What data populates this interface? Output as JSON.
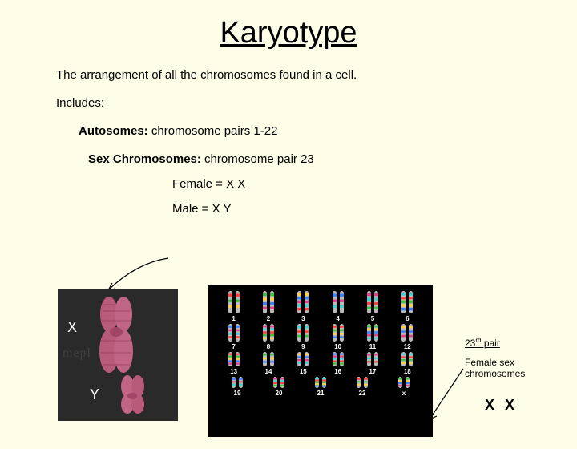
{
  "title": "Karyotype",
  "definition": "The arrangement of all the chromosomes found in a  cell.",
  "includes": "Includes:",
  "autosomes_label": "Autosomes:",
  "autosomes_text": "  chromosome pairs 1-22",
  "sexchrom_label": "Sex Chromosomes:",
  "sexchrom_text": "  chromosome pair 23",
  "female_label": "Female =    X X",
  "male_label": "Male =  X Y",
  "xy_image": {
    "x_label": "X",
    "y_label": "Y",
    "watermark": "mepl",
    "x_color": "#b85a7a",
    "y_color": "#c06585",
    "bg": "#2a2a2a"
  },
  "karyo": {
    "bg": "#000000",
    "label_color": "#ffffff",
    "rows": [
      {
        "height": 28,
        "labels": [
          "1",
          "2",
          "3",
          "4",
          "5",
          "6"
        ]
      },
      {
        "height": 22,
        "labels": [
          "7",
          "8",
          "9",
          "10",
          "11",
          "12"
        ]
      },
      {
        "height": 18,
        "labels": [
          "13",
          "14",
          "15",
          "16",
          "17",
          "18"
        ]
      },
      {
        "height": 14,
        "labels": [
          "19",
          "20",
          "21",
          "22",
          "x"
        ]
      }
    ],
    "band_colors": [
      "#ff4040",
      "#40c040",
      "#ffd040",
      "#4080ff",
      "#e04090",
      "#40d0d0"
    ]
  },
  "pair23": {
    "label_prefix": "23",
    "label_ord": "rd",
    "label_suffix": " pair",
    "desc": "Female sex chromosomes",
    "xx": "X X"
  },
  "arrow_color": "#000000"
}
